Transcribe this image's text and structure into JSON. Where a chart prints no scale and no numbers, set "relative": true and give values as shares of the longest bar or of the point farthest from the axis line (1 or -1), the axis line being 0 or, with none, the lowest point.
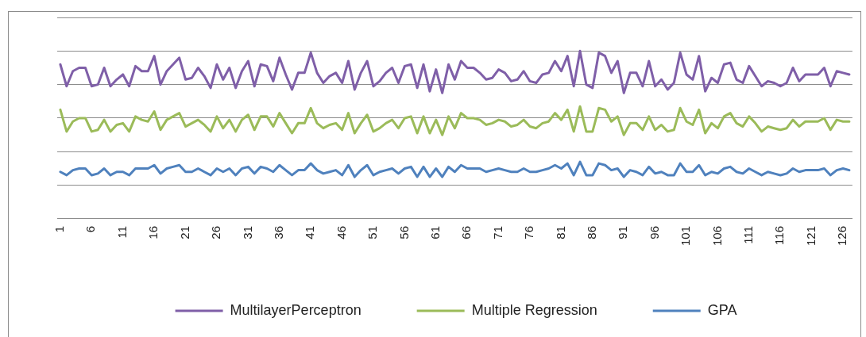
{
  "chart_data": {
    "type": "line",
    "relative": true,
    "grid": "y",
    "legend": "bottom",
    "marker": "none",
    "line_style": "solid",
    "categories": [
      "1",
      null,
      null,
      null,
      null,
      "6",
      null,
      null,
      null,
      null,
      "11",
      null,
      null,
      null,
      null,
      "16",
      null,
      null,
      null,
      null,
      "21",
      null,
      null,
      null,
      null,
      "26",
      null,
      null,
      null,
      null,
      "31",
      null,
      null,
      null,
      null,
      "36",
      null,
      null,
      null,
      null,
      "41",
      null,
      null,
      null,
      null,
      "46",
      null,
      null,
      null,
      null,
      "51",
      null,
      null,
      null,
      null,
      "56",
      null,
      null,
      null,
      null,
      "61",
      null,
      null,
      null,
      null,
      "66",
      null,
      null,
      null,
      null,
      "71",
      null,
      null,
      null,
      null,
      "76",
      null,
      null,
      null,
      null,
      "81",
      null,
      null,
      null,
      null,
      "86",
      null,
      null,
      null,
      null,
      "91",
      null,
      null,
      null,
      null,
      "96",
      null,
      null,
      null,
      null,
      "101",
      null,
      null,
      null,
      null,
      "106",
      null,
      null,
      null,
      null,
      "111",
      null,
      null,
      null,
      null,
      "116",
      null,
      null,
      null,
      null,
      "121",
      null,
      null,
      null,
      null,
      "126",
      null
    ],
    "series": [
      {
        "name": "MultilayerPerceptron",
        "color": "#7f5fa8",
        "values": [
          0.92,
          0.79,
          0.88,
          0.9,
          0.9,
          0.79,
          0.8,
          0.9,
          0.79,
          0.83,
          0.86,
          0.79,
          0.91,
          0.88,
          0.88,
          0.97,
          0.8,
          0.88,
          0.92,
          0.96,
          0.83,
          0.84,
          0.9,
          0.85,
          0.78,
          0.92,
          0.83,
          0.9,
          0.78,
          0.88,
          0.94,
          0.79,
          0.92,
          0.91,
          0.82,
          0.96,
          0.86,
          0.77,
          0.87,
          0.87,
          0.99,
          0.87,
          0.81,
          0.85,
          0.87,
          0.81,
          0.94,
          0.77,
          0.87,
          0.94,
          0.79,
          0.82,
          0.87,
          0.9,
          0.81,
          0.91,
          0.92,
          0.78,
          0.92,
          0.76,
          0.89,
          0.75,
          0.92,
          0.83,
          0.94,
          0.9,
          0.9,
          0.87,
          0.83,
          0.84,
          0.89,
          0.87,
          0.82,
          0.83,
          0.88,
          0.82,
          0.81,
          0.86,
          0.87,
          0.94,
          0.88,
          0.97,
          0.79,
          1,
          0.8,
          0.78,
          0.99,
          0.97,
          0.87,
          0.94,
          0.75,
          0.87,
          0.87,
          0.79,
          0.94,
          0.79,
          0.83,
          0.77,
          0.81,
          0.99,
          0.86,
          0.83,
          0.97,
          0.76,
          0.84,
          0.81,
          0.92,
          0.93,
          0.83,
          0.81,
          0.91,
          0.85,
          0.79,
          0.82,
          0.81,
          0.79,
          0.81,
          0.9,
          0.82,
          0.86,
          0.86,
          0.86,
          0.9,
          0.79,
          0.88,
          0.87,
          0.86
        ]
      },
      {
        "name": "Multiple Regression",
        "color": "#9bbb59",
        "values": [
          0.65,
          0.52,
          0.58,
          0.6,
          0.6,
          0.52,
          0.53,
          0.59,
          0.52,
          0.56,
          0.57,
          0.52,
          0.61,
          0.59,
          0.58,
          0.64,
          0.53,
          0.59,
          0.61,
          0.63,
          0.55,
          0.57,
          0.59,
          0.56,
          0.52,
          0.61,
          0.54,
          0.59,
          0.52,
          0.59,
          0.62,
          0.53,
          0.61,
          0.61,
          0.55,
          0.63,
          0.57,
          0.51,
          0.57,
          0.57,
          0.66,
          0.57,
          0.54,
          0.56,
          0.57,
          0.53,
          0.63,
          0.51,
          0.57,
          0.62,
          0.52,
          0.54,
          0.57,
          0.59,
          0.54,
          0.6,
          0.61,
          0.51,
          0.61,
          0.51,
          0.59,
          0.5,
          0.61,
          0.54,
          0.63,
          0.6,
          0.6,
          0.59,
          0.56,
          0.57,
          0.59,
          0.58,
          0.55,
          0.56,
          0.59,
          0.55,
          0.54,
          0.57,
          0.58,
          0.63,
          0.59,
          0.65,
          0.52,
          0.67,
          0.52,
          0.52,
          0.66,
          0.65,
          0.58,
          0.61,
          0.5,
          0.57,
          0.57,
          0.53,
          0.61,
          0.53,
          0.56,
          0.52,
          0.53,
          0.66,
          0.58,
          0.56,
          0.65,
          0.51,
          0.57,
          0.54,
          0.61,
          0.63,
          0.57,
          0.55,
          0.61,
          0.57,
          0.52,
          0.55,
          0.54,
          0.53,
          0.54,
          0.59,
          0.55,
          0.58,
          0.58,
          0.58,
          0.6,
          0.53,
          0.59,
          0.58,
          0.58
        ]
      },
      {
        "name": "GPA",
        "color": "#4f81bd",
        "values": [
          0.28,
          0.26,
          0.29,
          0.3,
          0.3,
          0.26,
          0.27,
          0.3,
          0.26,
          0.28,
          0.28,
          0.26,
          0.3,
          0.3,
          0.3,
          0.32,
          0.27,
          0.3,
          0.31,
          0.32,
          0.28,
          0.28,
          0.3,
          0.28,
          0.26,
          0.3,
          0.28,
          0.3,
          0.26,
          0.3,
          0.31,
          0.27,
          0.31,
          0.3,
          0.28,
          0.32,
          0.29,
          0.26,
          0.29,
          0.29,
          0.33,
          0.29,
          0.27,
          0.28,
          0.29,
          0.26,
          0.32,
          0.25,
          0.29,
          0.32,
          0.26,
          0.28,
          0.29,
          0.3,
          0.27,
          0.3,
          0.31,
          0.25,
          0.31,
          0.25,
          0.3,
          0.25,
          0.31,
          0.28,
          0.32,
          0.3,
          0.3,
          0.3,
          0.28,
          0.29,
          0.3,
          0.29,
          0.28,
          0.28,
          0.3,
          0.28,
          0.28,
          0.29,
          0.3,
          0.32,
          0.3,
          0.33,
          0.26,
          0.34,
          0.26,
          0.26,
          0.33,
          0.32,
          0.29,
          0.3,
          0.25,
          0.29,
          0.28,
          0.26,
          0.31,
          0.27,
          0.28,
          0.26,
          0.26,
          0.33,
          0.28,
          0.28,
          0.32,
          0.26,
          0.28,
          0.27,
          0.3,
          0.31,
          0.28,
          0.27,
          0.3,
          0.28,
          0.26,
          0.28,
          0.27,
          0.26,
          0.27,
          0.3,
          0.28,
          0.29,
          0.29,
          0.29,
          0.3,
          0.26,
          0.29,
          0.3,
          0.29
        ]
      }
    ]
  }
}
